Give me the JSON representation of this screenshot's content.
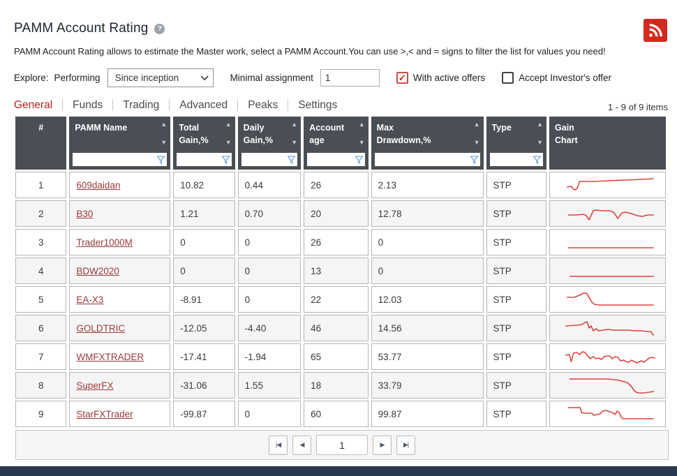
{
  "header": {
    "title": "PAMM Account Rating",
    "help_glyph": "?"
  },
  "description": "PAMM Account Rating allows to estimate the Master work, select a PAMM Account.You can use >,< and = signs to filter the list for values you need!",
  "filters": {
    "explore_label": "Explore:",
    "performing_label": "Performing",
    "period_select_value": "Since inception",
    "minimal_assignment_label": "Minimal assignment",
    "minimal_assignment_value": "1",
    "with_active_offers_label": "With active offers",
    "with_active_offers_checked": true,
    "accept_investors_offer_label": "Accept Investor's offer",
    "accept_investors_offer_checked": false
  },
  "tabs": [
    {
      "label": "General",
      "active": true
    },
    {
      "label": "Funds",
      "active": false
    },
    {
      "label": "Trading",
      "active": false
    },
    {
      "label": "Advanced",
      "active": false
    },
    {
      "label": "Peaks",
      "active": false
    },
    {
      "label": "Settings",
      "active": false
    }
  ],
  "items_count": "1 - 9 of 9 items",
  "table": {
    "columns": [
      {
        "line1": "#",
        "line2": ""
      },
      {
        "line1": "PAMM Name",
        "line2": ""
      },
      {
        "line1": "Total",
        "line2": "Gain,%"
      },
      {
        "line1": "Daily",
        "line2": "Gain,%"
      },
      {
        "line1": "Account",
        "line2": "age"
      },
      {
        "line1": "Max",
        "line2": "Drawdown,%"
      },
      {
        "line1": "Type",
        "line2": ""
      },
      {
        "line1": "Gain",
        "line2": "Chart"
      }
    ],
    "rows": [
      {
        "num": "1",
        "name": "609daidan",
        "total_gain": "10.82",
        "daily_gain": "0.44",
        "age": "26",
        "max_drawdown": "2.13",
        "type": "STP",
        "spark": [
          [
            16,
            20
          ],
          [
            22,
            19
          ],
          [
            25,
            23
          ],
          [
            28,
            24
          ],
          [
            31,
            21
          ],
          [
            34,
            12
          ],
          [
            55,
            12
          ],
          [
            75,
            11
          ],
          [
            100,
            10
          ],
          [
            125,
            9
          ],
          [
            142,
            8
          ]
        ]
      },
      {
        "num": "2",
        "name": "B30",
        "total_gain": "1.21",
        "daily_gain": "0.70",
        "age": "20",
        "max_drawdown": "12.78",
        "type": "STP",
        "spark": [
          [
            18,
            19
          ],
          [
            30,
            19
          ],
          [
            40,
            18
          ],
          [
            44,
            20
          ],
          [
            48,
            26
          ],
          [
            54,
            13
          ],
          [
            58,
            12
          ],
          [
            68,
            13
          ],
          [
            78,
            13
          ],
          [
            84,
            15
          ],
          [
            90,
            24
          ],
          [
            96,
            16
          ],
          [
            102,
            15
          ],
          [
            110,
            17
          ],
          [
            118,
            20
          ],
          [
            126,
            21
          ],
          [
            134,
            19
          ],
          [
            142,
            19
          ]
        ]
      },
      {
        "num": "3",
        "name": "Trader1000M",
        "total_gain": "0",
        "daily_gain": "0",
        "age": "26",
        "max_drawdown": "0",
        "type": "STP",
        "spark": [
          [
            18,
            25
          ],
          [
            142,
            25
          ]
        ]
      },
      {
        "num": "4",
        "name": "BDW2020",
        "total_gain": "0",
        "daily_gain": "0",
        "age": "13",
        "max_drawdown": "0",
        "type": "STP",
        "spark": [
          [
            20,
            25
          ],
          [
            142,
            25
          ]
        ]
      },
      {
        "num": "5",
        "name": "EA-X3",
        "total_gain": "-8.91",
        "daily_gain": "0",
        "age": "22",
        "max_drawdown": "12.03",
        "type": "STP",
        "spark": [
          [
            16,
            14
          ],
          [
            26,
            14
          ],
          [
            34,
            11
          ],
          [
            40,
            8
          ],
          [
            44,
            8
          ],
          [
            48,
            14
          ],
          [
            52,
            21
          ],
          [
            56,
            24
          ],
          [
            62,
            25
          ],
          [
            142,
            25
          ]
        ]
      },
      {
        "num": "6",
        "name": "GOLDTRIC",
        "total_gain": "-12.05",
        "daily_gain": "-4.40",
        "age": "46",
        "max_drawdown": "14.56",
        "type": "STP",
        "spark": [
          [
            14,
            14
          ],
          [
            30,
            13
          ],
          [
            38,
            12
          ],
          [
            42,
            9
          ],
          [
            45,
            8
          ],
          [
            48,
            17
          ],
          [
            51,
            14
          ],
          [
            54,
            21
          ],
          [
            58,
            18
          ],
          [
            62,
            21
          ],
          [
            68,
            20
          ],
          [
            76,
            19
          ],
          [
            84,
            20
          ],
          [
            95,
            20
          ],
          [
            105,
            20
          ],
          [
            115,
            21
          ],
          [
            125,
            21
          ],
          [
            133,
            22
          ],
          [
            138,
            22
          ],
          [
            142,
            27
          ]
        ]
      },
      {
        "num": "7",
        "name": "WMFXTRADER",
        "total_gain": "-17.41",
        "daily_gain": "-1.94",
        "age": "65",
        "max_drawdown": "53.77",
        "type": "STP",
        "spark": [
          [
            14,
            15
          ],
          [
            19,
            14
          ],
          [
            22,
            24
          ],
          [
            25,
            12
          ],
          [
            30,
            11
          ],
          [
            34,
            14
          ],
          [
            38,
            10
          ],
          [
            42,
            11
          ],
          [
            46,
            16
          ],
          [
            50,
            20
          ],
          [
            54,
            17
          ],
          [
            58,
            20
          ],
          [
            62,
            19
          ],
          [
            66,
            21
          ],
          [
            70,
            17
          ],
          [
            74,
            16
          ],
          [
            78,
            16
          ],
          [
            82,
            20
          ],
          [
            86,
            17
          ],
          [
            90,
            18
          ],
          [
            94,
            23
          ],
          [
            98,
            22
          ],
          [
            102,
            24
          ],
          [
            106,
            25
          ],
          [
            110,
            22
          ],
          [
            114,
            24
          ],
          [
            118,
            26
          ],
          [
            124,
            23
          ],
          [
            128,
            25
          ],
          [
            132,
            22
          ],
          [
            136,
            19
          ],
          [
            140,
            18
          ],
          [
            144,
            19
          ]
        ]
      },
      {
        "num": "8",
        "name": "SuperFX",
        "total_gain": "-31.06",
        "daily_gain": "1.55",
        "age": "18",
        "max_drawdown": "33.79",
        "type": "STP",
        "spark": [
          [
            20,
            8
          ],
          [
            60,
            8
          ],
          [
            75,
            8
          ],
          [
            85,
            9
          ],
          [
            92,
            10
          ],
          [
            100,
            12
          ],
          [
            105,
            14
          ],
          [
            110,
            19
          ],
          [
            115,
            26
          ],
          [
            120,
            28
          ],
          [
            128,
            28
          ],
          [
            135,
            27
          ],
          [
            142,
            26
          ]
        ]
      },
      {
        "num": "9",
        "name": "StarFXTrader",
        "total_gain": "-99.87",
        "daily_gain": "0",
        "age": "60",
        "max_drawdown": "99.87",
        "type": "STP",
        "spark": [
          [
            18,
            8
          ],
          [
            32,
            8
          ],
          [
            35,
            8
          ],
          [
            37,
            15
          ],
          [
            40,
            16
          ],
          [
            48,
            16
          ],
          [
            52,
            16
          ],
          [
            55,
            19
          ],
          [
            60,
            18
          ],
          [
            64,
            17
          ],
          [
            68,
            13
          ],
          [
            73,
            12
          ],
          [
            78,
            14
          ],
          [
            82,
            15
          ],
          [
            86,
            18
          ],
          [
            89,
            13
          ],
          [
            92,
            15
          ],
          [
            95,
            22
          ],
          [
            98,
            24
          ],
          [
            104,
            24
          ],
          [
            142,
            24
          ]
        ]
      }
    ]
  },
  "pagination": {
    "first": "|◀",
    "prev": "◀",
    "page_value": "1",
    "next": "▶",
    "last": "▶|"
  },
  "colors": {
    "accent_red": "#b5251d",
    "link": "#9a3a3a",
    "spark": "#d9453c",
    "header_bg": "#4a4e55",
    "rss_red": "#d3281e",
    "filter_icon_blue": "#5b9bd5",
    "bottom_bar": "#28394f"
  }
}
